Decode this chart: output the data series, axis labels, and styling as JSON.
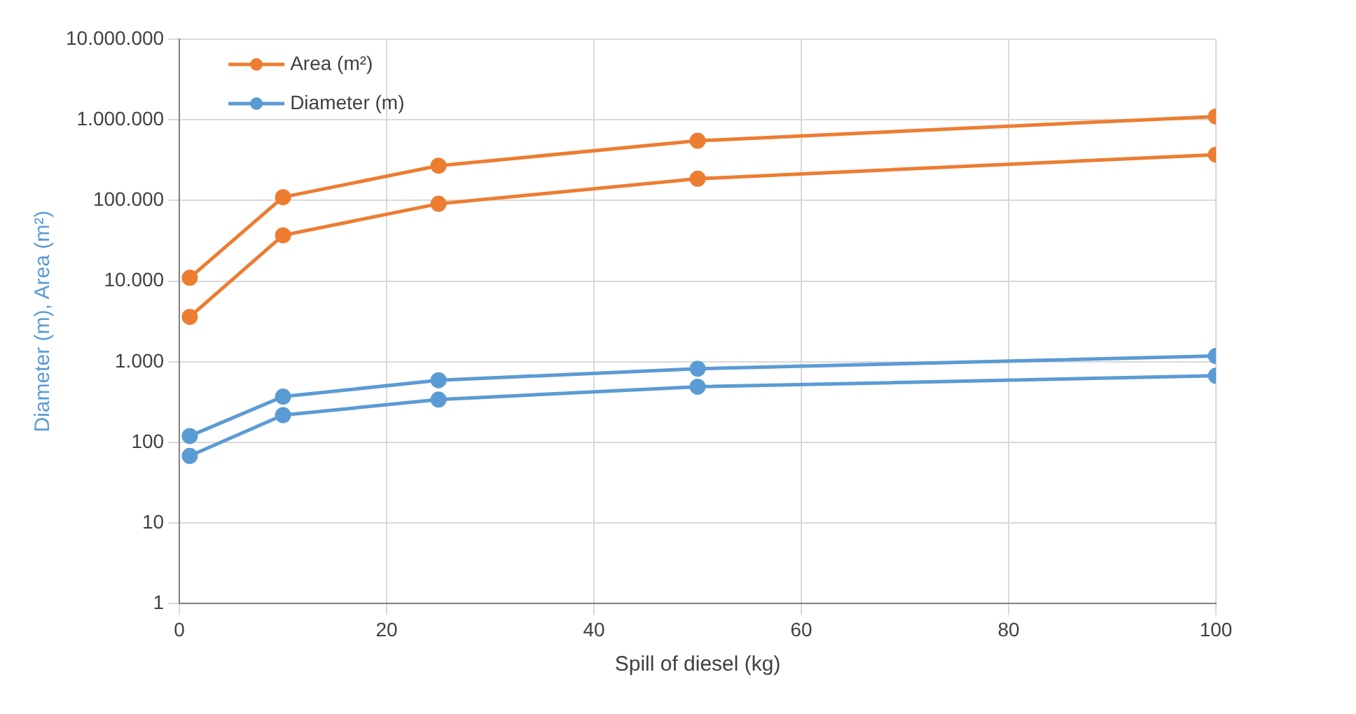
{
  "chart_data": {
    "type": "line",
    "xlabel": "Spill of diesel (kg)",
    "ylabel": "Diameter (m), Area (m²)",
    "x": [
      1,
      10,
      25,
      50,
      100
    ],
    "series": [
      {
        "name": "Area (m²)",
        "color": "#ed7d31",
        "values": [
          11000,
          110000,
          270000,
          550000,
          1100000
        ]
      },
      {
        "color": "#ed7d31",
        "values": [
          3600,
          37000,
          91000,
          186000,
          370000
        ]
      },
      {
        "name": "Diameter (m)",
        "color": "#5b9bd5",
        "values": [
          120,
          370,
          590,
          820,
          1180
        ]
      },
      {
        "color": "#5b9bd5",
        "values": [
          68,
          218,
          340,
          490,
          670
        ]
      }
    ],
    "log": "y",
    "xlim": [
      0,
      100
    ],
    "xticks": [
      0,
      20,
      40,
      60,
      80,
      100
    ],
    "ylim": [
      1,
      10000000
    ],
    "yticks": [
      1,
      10,
      100,
      {
        "value": 1000,
        "label": "1.000"
      },
      {
        "value": 10000,
        "label": "10.000"
      },
      {
        "value": 100000,
        "label": "100.000"
      },
      {
        "value": 1000000,
        "label": "1.000.000"
      },
      {
        "value": 10000000,
        "label": "10.000.000"
      }
    ],
    "grid": true,
    "legend": "top left",
    "marker": "circle",
    "line_style": "solid"
  }
}
